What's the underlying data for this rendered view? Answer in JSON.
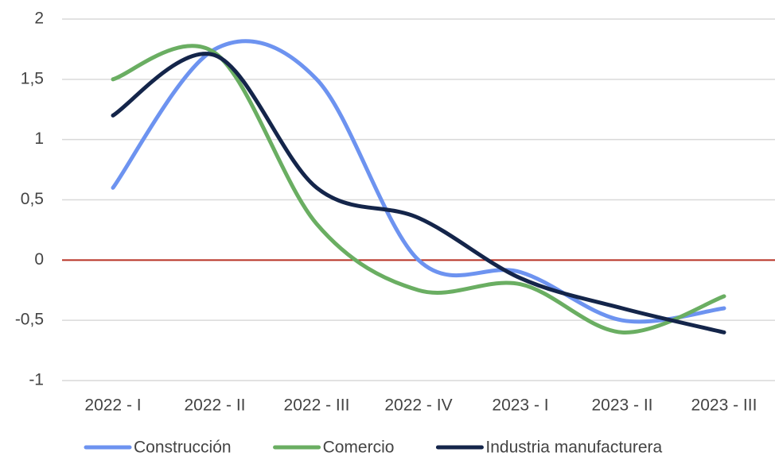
{
  "chart_data": {
    "type": "line",
    "categories": [
      "2022 - I",
      "2022 - II",
      "2022 - III",
      "2022 - IV",
      "2023 - I",
      "2023 - II",
      "2023 - III"
    ],
    "series": [
      {
        "name": "Construcción",
        "color": "#6d93f0",
        "values": [
          0.6,
          1.75,
          1.5,
          0.0,
          -0.1,
          -0.5,
          -0.4
        ]
      },
      {
        "name": "Comercio",
        "color": "#6aae62",
        "values": [
          1.5,
          1.72,
          0.3,
          -0.25,
          -0.2,
          -0.6,
          -0.3
        ]
      },
      {
        "name": "Industria manufacturera",
        "color": "#14254a",
        "values": [
          1.2,
          1.7,
          0.6,
          0.35,
          -0.15,
          -0.4,
          -0.6
        ]
      }
    ],
    "ylim": [
      -1,
      2
    ],
    "yticks": [
      -1,
      {
        "value": -0.5,
        "label": "-0,5"
      },
      0,
      {
        "value": 0.5,
        "label": "0,5"
      },
      1,
      {
        "value": 1.5,
        "label": "1,5"
      },
      2
    ],
    "grid": true,
    "smooth": true,
    "zero_line_color": "#b83224",
    "legend": "bottom"
  }
}
